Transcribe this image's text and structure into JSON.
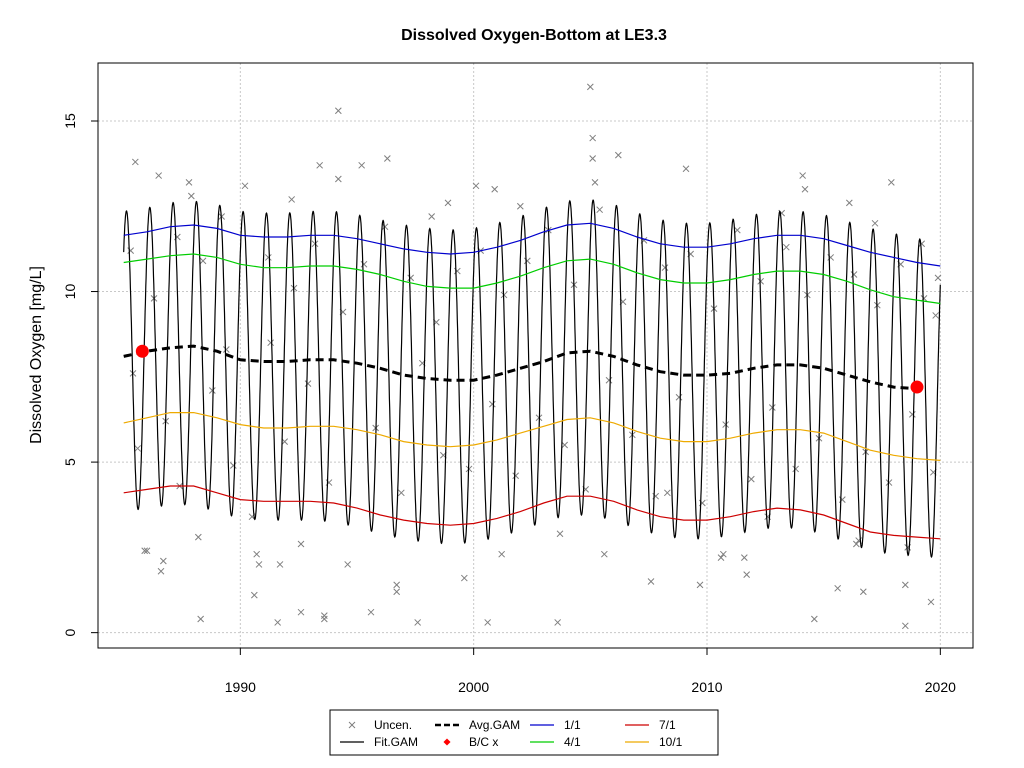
{
  "chart_data": {
    "type": "line",
    "title": "Dissolved Oxygen-Bottom at LE3.3",
    "xlabel": "",
    "ylabel": "Dissolved Oxygen [mg/L]",
    "xlim": [
      1983.9,
      2021.4
    ],
    "ylim": [
      -0.45,
      16.7
    ],
    "x_ticks": [
      1990,
      2000,
      2010,
      2020
    ],
    "y_ticks": [
      0,
      5,
      10,
      15
    ],
    "grid": true,
    "legend_position": "bottom-center",
    "legend": [
      {
        "label": "Uncen.",
        "symbol": "cross",
        "color": "#7f7f7f"
      },
      {
        "label": "Fit.GAM",
        "symbol": "line",
        "color": "#000000"
      },
      {
        "label": "Avg.GAM",
        "symbol": "dashed",
        "color": "#000000"
      },
      {
        "label": "B/C x",
        "symbol": "dot",
        "color": "#ff0000"
      },
      {
        "label": "1/1",
        "symbol": "line",
        "color": "#0000cd"
      },
      {
        "label": "4/1",
        "symbol": "line",
        "color": "#00cd00"
      },
      {
        "label": "7/1",
        "symbol": "line",
        "color": "#cd0000"
      },
      {
        "label": "10/1",
        "symbol": "line",
        "color": "#eeaa00"
      }
    ],
    "colors": {
      "observed": "#7f7f7f",
      "fit": "#000000",
      "average": "#000000",
      "bc": "#ff0000",
      "jan": "#0000cd",
      "apr": "#00cd00",
      "jul": "#cd0000",
      "oct": "#eeaa00"
    },
    "x_range": [
      1985.0,
      2020.0
    ],
    "series": [
      {
        "name": "1/1",
        "key": "jan",
        "x": [
          1985,
          1986,
          1987,
          1988,
          1989,
          1990,
          1991,
          1992,
          1993,
          1994,
          1995,
          1996,
          1997,
          1998,
          1999,
          2000,
          2001,
          2002,
          2003,
          2004,
          2005,
          2006,
          2007,
          2008,
          2009,
          2010,
          2011,
          2012,
          2013,
          2014,
          2015,
          2016,
          2017,
          2018,
          2019,
          2020
        ],
        "y": [
          11.65,
          11.75,
          11.9,
          11.95,
          11.85,
          11.65,
          11.6,
          11.6,
          11.65,
          11.65,
          11.55,
          11.4,
          11.25,
          11.15,
          11.1,
          11.15,
          11.3,
          11.5,
          11.75,
          11.95,
          12.0,
          11.85,
          11.6,
          11.4,
          11.3,
          11.3,
          11.4,
          11.55,
          11.65,
          11.65,
          11.55,
          11.35,
          11.15,
          11.0,
          10.85,
          10.75
        ]
      },
      {
        "name": "4/1",
        "key": "apr",
        "x": [
          1985,
          1986,
          1987,
          1988,
          1989,
          1990,
          1991,
          1992,
          1993,
          1994,
          1995,
          1996,
          1997,
          1998,
          1999,
          2000,
          2001,
          2002,
          2003,
          2004,
          2005,
          2006,
          2007,
          2008,
          2009,
          2010,
          2011,
          2012,
          2013,
          2014,
          2015,
          2016,
          2017,
          2018,
          2019,
          2020
        ],
        "y": [
          10.85,
          10.95,
          11.05,
          11.1,
          11.0,
          10.8,
          10.7,
          10.7,
          10.75,
          10.75,
          10.65,
          10.5,
          10.3,
          10.15,
          10.1,
          10.1,
          10.25,
          10.45,
          10.7,
          10.9,
          10.95,
          10.8,
          10.55,
          10.35,
          10.25,
          10.25,
          10.35,
          10.5,
          10.6,
          10.6,
          10.5,
          10.3,
          10.05,
          9.85,
          9.75,
          9.65
        ]
      },
      {
        "name": "10/1",
        "key": "oct",
        "x": [
          1985,
          1986,
          1987,
          1988,
          1989,
          1990,
          1991,
          1992,
          1993,
          1994,
          1995,
          1996,
          1997,
          1998,
          1999,
          2000,
          2001,
          2002,
          2003,
          2004,
          2005,
          2006,
          2007,
          2008,
          2009,
          2010,
          2011,
          2012,
          2013,
          2014,
          2015,
          2016,
          2017,
          2018,
          2019,
          2020
        ],
        "y": [
          6.15,
          6.3,
          6.45,
          6.45,
          6.3,
          6.1,
          6.0,
          6.0,
          6.05,
          6.05,
          5.95,
          5.8,
          5.6,
          5.5,
          5.45,
          5.5,
          5.65,
          5.85,
          6.05,
          6.25,
          6.3,
          6.15,
          5.9,
          5.7,
          5.6,
          5.6,
          5.7,
          5.85,
          5.95,
          5.95,
          5.85,
          5.6,
          5.35,
          5.2,
          5.1,
          5.05
        ]
      },
      {
        "name": "7/1",
        "key": "jul",
        "x": [
          1985,
          1986,
          1987,
          1988,
          1989,
          1990,
          1991,
          1992,
          1993,
          1994,
          1995,
          1996,
          1997,
          1998,
          1999,
          2000,
          2001,
          2002,
          2003,
          2004,
          2005,
          2006,
          2007,
          2008,
          2009,
          2010,
          2011,
          2012,
          2013,
          2014,
          2015,
          2016,
          2017,
          2018,
          2019,
          2020
        ],
        "y": [
          4.1,
          4.2,
          4.3,
          4.3,
          4.1,
          3.9,
          3.85,
          3.85,
          3.85,
          3.8,
          3.65,
          3.45,
          3.3,
          3.2,
          3.15,
          3.2,
          3.35,
          3.55,
          3.8,
          4.0,
          4.0,
          3.85,
          3.6,
          3.4,
          3.3,
          3.3,
          3.4,
          3.55,
          3.65,
          3.6,
          3.45,
          3.2,
          2.95,
          2.85,
          2.8,
          2.75
        ]
      },
      {
        "name": "Avg.GAM",
        "key": "average",
        "x": [
          1985,
          1986,
          1987,
          1988,
          1989,
          1990,
          1991,
          1992,
          1993,
          1994,
          1995,
          1996,
          1997,
          1998,
          1999,
          2000,
          2001,
          2002,
          2003,
          2004,
          2005,
          2006,
          2007,
          2008,
          2009,
          2010,
          2011,
          2012,
          2013,
          2014,
          2015,
          2016,
          2017,
          2018,
          2019
        ],
        "y": [
          8.1,
          8.25,
          8.35,
          8.4,
          8.25,
          8.0,
          7.95,
          7.95,
          8.0,
          8.0,
          7.9,
          7.75,
          7.55,
          7.45,
          7.4,
          7.4,
          7.55,
          7.75,
          7.95,
          8.2,
          8.25,
          8.1,
          7.85,
          7.65,
          7.55,
          7.55,
          7.6,
          7.75,
          7.85,
          7.85,
          7.75,
          7.55,
          7.35,
          7.2,
          7.15
        ]
      }
    ],
    "fit_gam": {
      "name": "Fit.GAM",
      "note": "seasonal fit oscillating between the 7/1 and 1/1 envelopes, one cycle per year, peak near Jan-Feb"
    },
    "bc_points": [
      {
        "x": 1985.8,
        "y": 8.25
      },
      {
        "x": 2019.0,
        "y": 7.2
      }
    ],
    "observations": [
      {
        "x": 1985.9,
        "y": 2.4
      },
      {
        "x": 1986.0,
        "y": 2.4
      },
      {
        "x": 1985.5,
        "y": 13.8
      },
      {
        "x": 1986.5,
        "y": 13.4
      },
      {
        "x": 1986.7,
        "y": 2.1
      },
      {
        "x": 1986.6,
        "y": 1.8
      },
      {
        "x": 1987.8,
        "y": 13.2
      },
      {
        "x": 1987.9,
        "y": 12.8
      },
      {
        "x": 1988.3,
        "y": 0.4
      },
      {
        "x": 1988.2,
        "y": 2.8
      },
      {
        "x": 1990.2,
        "y": 13.1
      },
      {
        "x": 1990.5,
        "y": 3.4
      },
      {
        "x": 1990.7,
        "y": 2.3
      },
      {
        "x": 1990.8,
        "y": 2.0
      },
      {
        "x": 1990.6,
        "y": 1.1
      },
      {
        "x": 1991.7,
        "y": 2.0
      },
      {
        "x": 1991.6,
        "y": 0.3
      },
      {
        "x": 1992.2,
        "y": 12.7
      },
      {
        "x": 1992.6,
        "y": 2.6
      },
      {
        "x": 1992.6,
        "y": 0.6
      },
      {
        "x": 1993.4,
        "y": 13.7
      },
      {
        "x": 1993.6,
        "y": 0.5
      },
      {
        "x": 1993.6,
        "y": 0.4
      },
      {
        "x": 1994.2,
        "y": 15.3
      },
      {
        "x": 1994.2,
        "y": 13.3
      },
      {
        "x": 1994.6,
        "y": 2.0
      },
      {
        "x": 1995.2,
        "y": 13.7
      },
      {
        "x": 1995.6,
        "y": 0.6
      },
      {
        "x": 1996.3,
        "y": 13.9
      },
      {
        "x": 1996.7,
        "y": 1.2
      },
      {
        "x": 1996.7,
        "y": 1.4
      },
      {
        "x": 1997.6,
        "y": 0.3
      },
      {
        "x": 1998.2,
        "y": 12.2
      },
      {
        "x": 1998.9,
        "y": 12.6
      },
      {
        "x": 1999.6,
        "y": 1.6
      },
      {
        "x": 2000.1,
        "y": 13.1
      },
      {
        "x": 2000.6,
        "y": 0.3
      },
      {
        "x": 2000.9,
        "y": 13.0
      },
      {
        "x": 2001.2,
        "y": 2.3
      },
      {
        "x": 2002.0,
        "y": 12.5
      },
      {
        "x": 2003.6,
        "y": 0.3
      },
      {
        "x": 2003.7,
        "y": 2.9
      },
      {
        "x": 2005.0,
        "y": 16.0
      },
      {
        "x": 2005.1,
        "y": 14.5
      },
      {
        "x": 2005.1,
        "y": 13.9
      },
      {
        "x": 2005.2,
        "y": 13.2
      },
      {
        "x": 2005.6,
        "y": 2.3
      },
      {
        "x": 2006.2,
        "y": 14.0
      },
      {
        "x": 2007.6,
        "y": 1.5
      },
      {
        "x": 2008.3,
        "y": 4.1
      },
      {
        "x": 2009.1,
        "y": 13.6
      },
      {
        "x": 2009.7,
        "y": 1.4
      },
      {
        "x": 2010.6,
        "y": 2.2
      },
      {
        "x": 2010.7,
        "y": 2.3
      },
      {
        "x": 2011.6,
        "y": 2.2
      },
      {
        "x": 2011.7,
        "y": 1.7
      },
      {
        "x": 2012.6,
        "y": 3.4
      },
      {
        "x": 2013.2,
        "y": 12.3
      },
      {
        "x": 2014.1,
        "y": 13.4
      },
      {
        "x": 2014.2,
        "y": 13.0
      },
      {
        "x": 2014.6,
        "y": 0.4
      },
      {
        "x": 2015.6,
        "y": 1.3
      },
      {
        "x": 2016.1,
        "y": 12.6
      },
      {
        "x": 2016.4,
        "y": 2.6
      },
      {
        "x": 2016.5,
        "y": 2.7
      },
      {
        "x": 2016.7,
        "y": 1.2
      },
      {
        "x": 2017.2,
        "y": 12.0
      },
      {
        "x": 2017.9,
        "y": 13.2
      },
      {
        "x": 2018.5,
        "y": 0.2
      },
      {
        "x": 2018.5,
        "y": 1.4
      },
      {
        "x": 2018.6,
        "y": 2.5
      },
      {
        "x": 2019.2,
        "y": 11.4
      },
      {
        "x": 2019.6,
        "y": 0.9
      },
      {
        "x": 2019.9,
        "y": 10.4
      },
      {
        "x": 2019.8,
        "y": 9.3
      },
      {
        "x": 1985.3,
        "y": 11.2
      },
      {
        "x": 1985.4,
        "y": 7.6
      },
      {
        "x": 1985.6,
        "y": 5.4
      },
      {
        "x": 1986.3,
        "y": 9.8
      },
      {
        "x": 1986.8,
        "y": 6.2
      },
      {
        "x": 1987.3,
        "y": 11.6
      },
      {
        "x": 1987.4,
        "y": 4.3
      },
      {
        "x": 1988.4,
        "y": 10.9
      },
      {
        "x": 1988.8,
        "y": 7.1
      },
      {
        "x": 1989.2,
        "y": 12.2
      },
      {
        "x": 1989.4,
        "y": 8.3
      },
      {
        "x": 1989.7,
        "y": 4.9
      },
      {
        "x": 1991.2,
        "y": 11.0
      },
      {
        "x": 1991.3,
        "y": 8.5
      },
      {
        "x": 1991.9,
        "y": 5.6
      },
      {
        "x": 1992.3,
        "y": 10.1
      },
      {
        "x": 1992.9,
        "y": 7.3
      },
      {
        "x": 1993.2,
        "y": 11.4
      },
      {
        "x": 1993.8,
        "y": 4.4
      },
      {
        "x": 1994.4,
        "y": 9.4
      },
      {
        "x": 1995.3,
        "y": 10.8
      },
      {
        "x": 1995.8,
        "y": 6.0
      },
      {
        "x": 1996.2,
        "y": 11.9
      },
      {
        "x": 1996.9,
        "y": 4.1
      },
      {
        "x": 1997.3,
        "y": 10.4
      },
      {
        "x": 1997.8,
        "y": 7.9
      },
      {
        "x": 1998.4,
        "y": 9.1
      },
      {
        "x": 1998.7,
        "y": 5.2
      },
      {
        "x": 1999.3,
        "y": 10.6
      },
      {
        "x": 1999.8,
        "y": 4.8
      },
      {
        "x": 2000.3,
        "y": 11.2
      },
      {
        "x": 2000.8,
        "y": 6.7
      },
      {
        "x": 2001.3,
        "y": 9.9
      },
      {
        "x": 2001.8,
        "y": 4.6
      },
      {
        "x": 2002.3,
        "y": 10.9
      },
      {
        "x": 2002.8,
        "y": 6.3
      },
      {
        "x": 2003.2,
        "y": 11.8
      },
      {
        "x": 2003.9,
        "y": 5.5
      },
      {
        "x": 2004.3,
        "y": 10.2
      },
      {
        "x": 2004.8,
        "y": 4.2
      },
      {
        "x": 2005.4,
        "y": 12.4
      },
      {
        "x": 2005.8,
        "y": 7.4
      },
      {
        "x": 2006.4,
        "y": 9.7
      },
      {
        "x": 2006.8,
        "y": 5.8
      },
      {
        "x": 2007.3,
        "y": 11.5
      },
      {
        "x": 2007.8,
        "y": 4.0
      },
      {
        "x": 2008.2,
        "y": 10.7
      },
      {
        "x": 2008.8,
        "y": 6.9
      },
      {
        "x": 2009.3,
        "y": 11.1
      },
      {
        "x": 2009.8,
        "y": 3.8
      },
      {
        "x": 2010.3,
        "y": 9.5
      },
      {
        "x": 2010.8,
        "y": 6.1
      },
      {
        "x": 2011.3,
        "y": 11.8
      },
      {
        "x": 2011.9,
        "y": 4.5
      },
      {
        "x": 2012.3,
        "y": 10.3
      },
      {
        "x": 2012.8,
        "y": 6.6
      },
      {
        "x": 2013.4,
        "y": 11.3
      },
      {
        "x": 2013.8,
        "y": 4.8
      },
      {
        "x": 2014.3,
        "y": 9.9
      },
      {
        "x": 2014.8,
        "y": 5.7
      },
      {
        "x": 2015.3,
        "y": 11.0
      },
      {
        "x": 2015.8,
        "y": 3.9
      },
      {
        "x": 2016.3,
        "y": 10.5
      },
      {
        "x": 2016.8,
        "y": 5.3
      },
      {
        "x": 2017.3,
        "y": 9.6
      },
      {
        "x": 2017.8,
        "y": 4.4
      },
      {
        "x": 2018.3,
        "y": 10.8
      },
      {
        "x": 2018.8,
        "y": 6.4
      },
      {
        "x": 2019.3,
        "y": 9.8
      },
      {
        "x": 2019.7,
        "y": 4.7
      }
    ]
  }
}
